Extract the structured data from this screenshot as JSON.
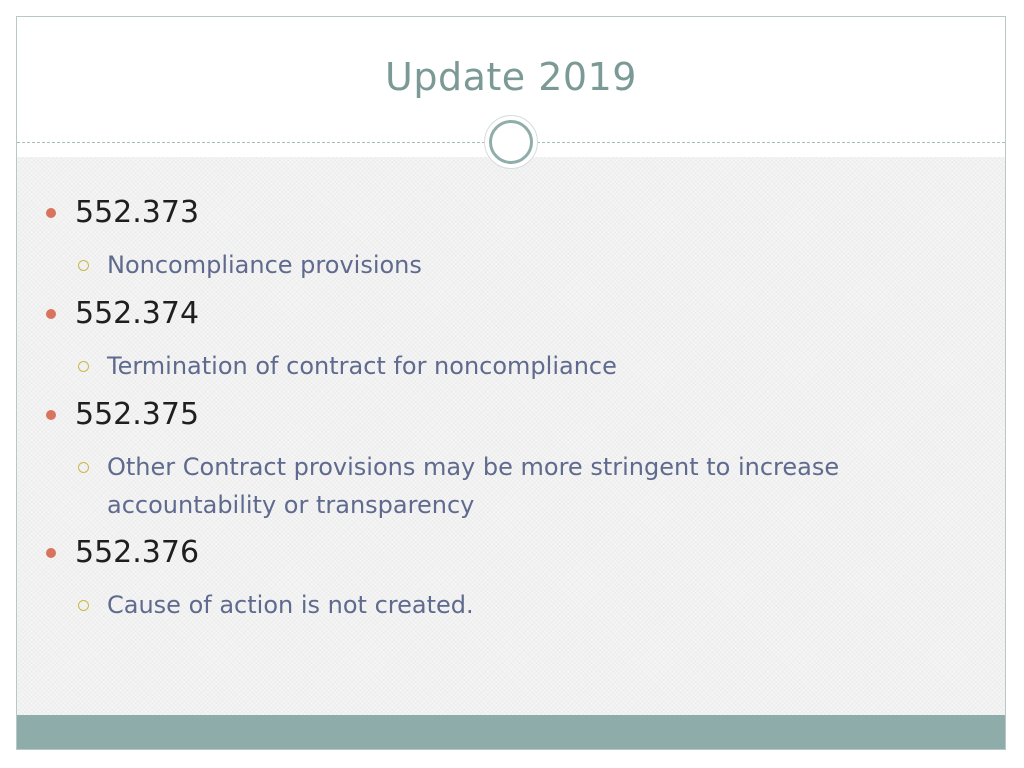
{
  "slide": {
    "title": "Update 2019",
    "items": [
      {
        "label": "552.373",
        "sub": "Noncompliance provisions"
      },
      {
        "label": "552.374",
        "sub": "Termination of contract for noncompliance"
      },
      {
        "label": "552.375",
        "sub": "Other Contract provisions may be more stringent to increase accountability or transparency"
      },
      {
        "label": "552.376",
        "sub": "Cause of action is not created."
      }
    ]
  },
  "colors": {
    "title": "#7b9a96",
    "accent_bullet": "#d9735e",
    "sub_bullet": "#c9b84a",
    "sub_text": "#5f6a8e",
    "footer": "#8eaca9"
  }
}
